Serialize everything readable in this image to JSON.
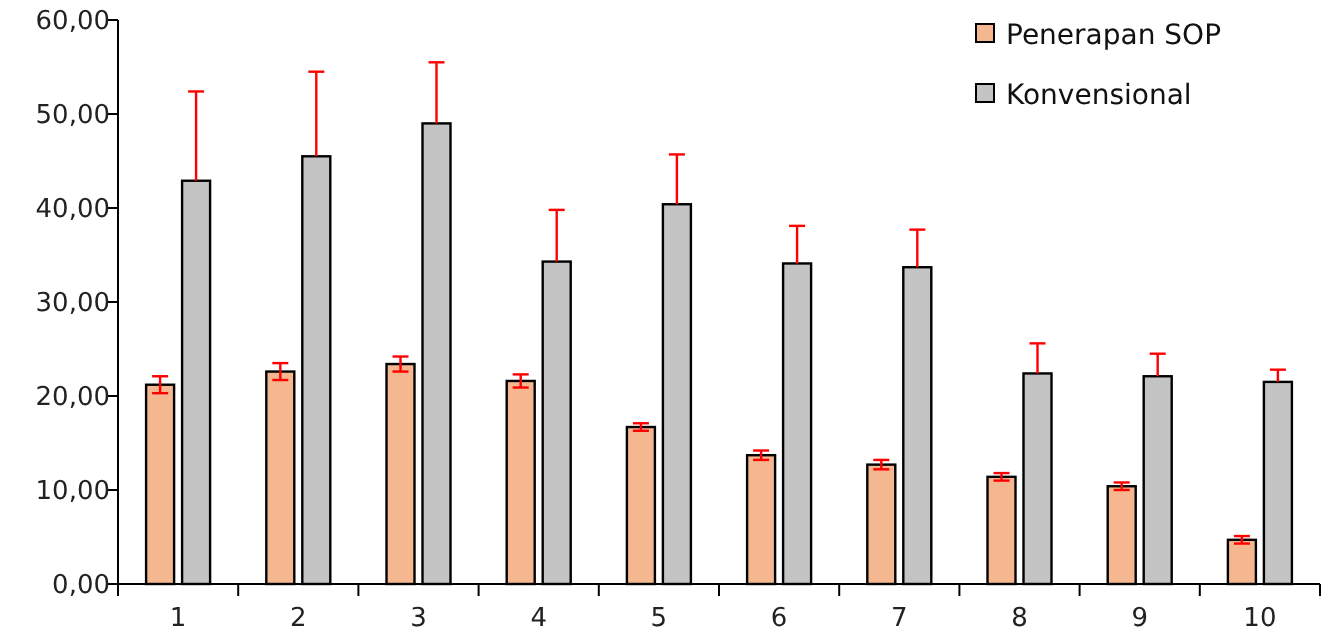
{
  "chart_data": {
    "type": "bar",
    "categories": [
      "1",
      "2",
      "3",
      "4",
      "5",
      "6",
      "7",
      "8",
      "9",
      "10"
    ],
    "series": [
      {
        "name": "Penerapan SOP",
        "color": "#f4b78f",
        "values": [
          21.2,
          22.6,
          23.4,
          21.6,
          16.7,
          13.7,
          12.7,
          11.4,
          10.4,
          4.7
        ],
        "errors": [
          0.9,
          0.9,
          0.8,
          0.7,
          0.4,
          0.5,
          0.5,
          0.4,
          0.4,
          0.4
        ]
      },
      {
        "name": "Konvensional",
        "color": "#c4c4c4",
        "values": [
          42.9,
          45.5,
          49.0,
          34.3,
          40.4,
          34.1,
          33.7,
          22.4,
          22.1,
          21.5
        ],
        "errors": [
          [
            42.9,
            52.4
          ],
          [
            45.5,
            54.5
          ],
          [
            49.0,
            55.5
          ],
          [
            34.3,
            39.8
          ],
          [
            40.4,
            45.7
          ],
          [
            34.1,
            38.1
          ],
          [
            33.7,
            37.7
          ],
          [
            22.4,
            25.6
          ],
          [
            22.1,
            24.5
          ],
          [
            21.5,
            22.8
          ]
        ]
      }
    ],
    "ylim": [
      0,
      60
    ],
    "yticks": [
      {
        "value": 0,
        "label": "0,00"
      },
      {
        "value": 10,
        "label": "10,00"
      },
      {
        "value": 20,
        "label": "20,00"
      },
      {
        "value": 30,
        "label": "30,00"
      },
      {
        "value": 40,
        "label": "40,00"
      },
      {
        "value": 50,
        "label": "50,00"
      },
      {
        "value": 60,
        "label": "60,00"
      }
    ],
    "grid": false,
    "legend": "top right"
  }
}
